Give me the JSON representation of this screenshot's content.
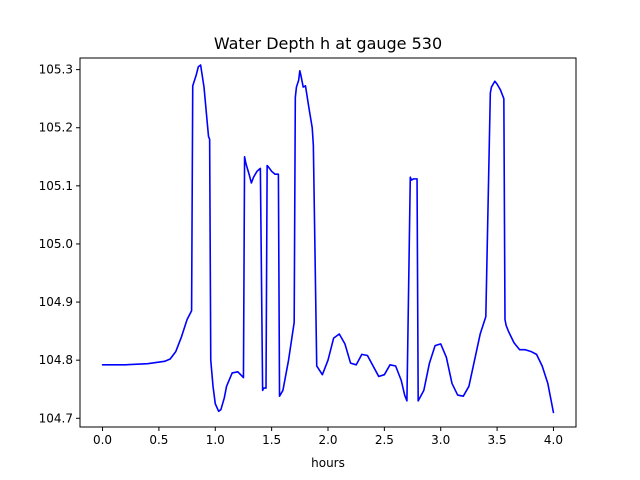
{
  "chart_data": {
    "type": "line",
    "title": "Water Depth h at gauge 530",
    "xlabel": "hours",
    "ylabel": "",
    "xlim": [
      -0.2,
      4.2
    ],
    "ylim": [
      104.685,
      105.32
    ],
    "xticks": [
      0.0,
      0.5,
      1.0,
      1.5,
      2.0,
      2.5,
      3.0,
      3.5,
      4.0
    ],
    "xtick_labels": [
      "0.0",
      "0.5",
      "1.0",
      "1.5",
      "2.0",
      "2.5",
      "3.0",
      "3.5",
      "4.0"
    ],
    "yticks": [
      104.7,
      104.8,
      104.9,
      105.0,
      105.1,
      105.2,
      105.3
    ],
    "ytick_labels": [
      "104.7",
      "104.8",
      "104.9",
      "105.0",
      "105.1",
      "105.2",
      "105.3"
    ],
    "grid": false,
    "line_color": "#0000ff",
    "series": [
      {
        "x": [
          0.0,
          0.2,
          0.4,
          0.55,
          0.6,
          0.65,
          0.7,
          0.75,
          0.79,
          0.8,
          0.83,
          0.85,
          0.87,
          0.9,
          0.94,
          0.95,
          0.96,
          0.98,
          1.0,
          1.03,
          1.05,
          1.08,
          1.1,
          1.15,
          1.2,
          1.25,
          1.26,
          1.27,
          1.28,
          1.3,
          1.32,
          1.34,
          1.37,
          1.4,
          1.42,
          1.43,
          1.45,
          1.46,
          1.47,
          1.5,
          1.53,
          1.56,
          1.57,
          1.6,
          1.65,
          1.7,
          1.71,
          1.72,
          1.74,
          1.75,
          1.76,
          1.78,
          1.8,
          1.81,
          1.83,
          1.86,
          1.87,
          1.9,
          1.95,
          2.0,
          2.05,
          2.1,
          2.15,
          2.2,
          2.25,
          2.3,
          2.35,
          2.4,
          2.45,
          2.5,
          2.55,
          2.6,
          2.65,
          2.68,
          2.7,
          2.73,
          2.74,
          2.76,
          2.79,
          2.8,
          2.85,
          2.9,
          2.95,
          3.0,
          3.05,
          3.1,
          3.15,
          3.2,
          3.25,
          3.3,
          3.35,
          3.4,
          3.44,
          3.45,
          3.48,
          3.5,
          3.53,
          3.56,
          3.57,
          3.58,
          3.6,
          3.65,
          3.7,
          3.75,
          3.8,
          3.85,
          3.9,
          3.95,
          4.0
        ],
        "y": [
          104.792,
          104.792,
          104.794,
          104.798,
          104.802,
          104.815,
          104.84,
          104.87,
          104.885,
          105.272,
          105.29,
          105.305,
          105.308,
          105.27,
          105.185,
          105.18,
          104.8,
          104.755,
          104.725,
          104.712,
          104.715,
          104.735,
          104.755,
          104.778,
          104.78,
          104.77,
          105.15,
          105.14,
          105.133,
          105.12,
          105.105,
          105.115,
          105.125,
          105.13,
          104.748,
          104.752,
          104.752,
          105.135,
          105.133,
          105.125,
          105.12,
          105.12,
          104.738,
          104.748,
          104.8,
          104.865,
          105.252,
          105.27,
          105.282,
          105.298,
          105.29,
          105.27,
          105.272,
          105.26,
          105.235,
          105.2,
          105.17,
          104.79,
          104.775,
          104.8,
          104.838,
          104.845,
          104.828,
          104.795,
          104.792,
          104.81,
          104.808,
          104.79,
          104.772,
          104.775,
          104.792,
          104.79,
          104.765,
          104.74,
          104.73,
          105.115,
          105.11,
          105.112,
          105.112,
          104.73,
          104.748,
          104.795,
          104.825,
          104.828,
          104.805,
          104.76,
          104.74,
          104.738,
          104.755,
          104.8,
          104.845,
          104.875,
          105.26,
          105.27,
          105.28,
          105.275,
          105.265,
          105.25,
          104.87,
          104.86,
          104.85,
          104.83,
          104.818,
          104.818,
          104.815,
          104.81,
          104.79,
          104.76,
          104.71
        ]
      }
    ]
  }
}
